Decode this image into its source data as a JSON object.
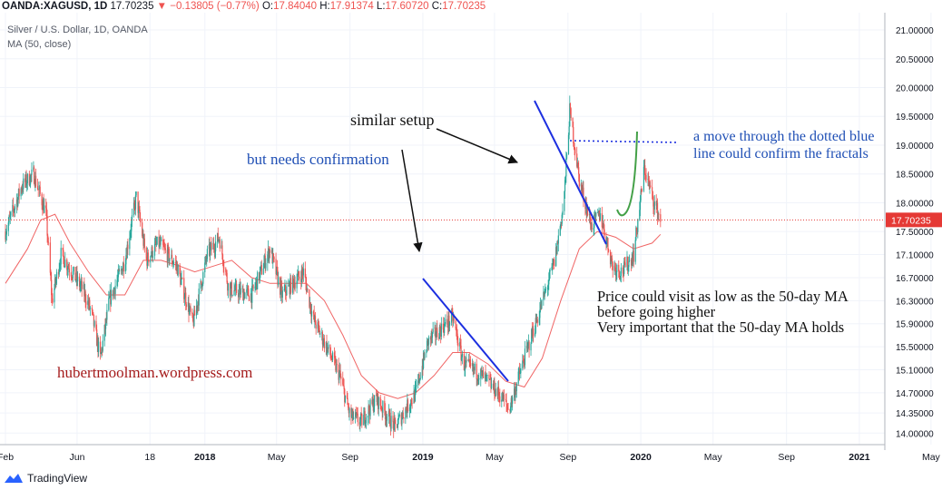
{
  "header": {
    "symbol": "OANDA:XAGUSD, 1D",
    "last": "17.70235",
    "change": "−0.13805 (−0.77%)",
    "open_label": "O:",
    "open": "17.84040",
    "high_label": "H:",
    "high": "17.91374",
    "low_label": "L:",
    "low": "17.60720",
    "close_label": "C:",
    "close": "17.70235",
    "title": "Silver / U.S. Dollar, 1D, OANDA",
    "indicator": "MA (50, close)"
  },
  "footer": {
    "brand": "TradingView"
  },
  "colors": {
    "up": "#26a69a",
    "down": "#ef5350",
    "ma": "#f06565",
    "price_line": "#e53935",
    "trend": "#1c2fe0",
    "green": "#43a047",
    "annot_blue": "#1f4fb5",
    "annot_red": "#a51b1b"
  },
  "chart_data": {
    "type": "candlestick",
    "title": "Silver / U.S. Dollar, 1D, OANDA",
    "ylim": [
      13.8,
      21.3
    ],
    "y_ticks": [
      "21.00000",
      "20.50000",
      "20.00000",
      "19.50000",
      "19.00000",
      "18.50000",
      "18.00000",
      "17.50000",
      "17.10000",
      "16.70000",
      "16.30000",
      "15.90000",
      "15.50000",
      "15.10000",
      "14.70000",
      "14.35000",
      "14.00000"
    ],
    "x_ticks": [
      "Feb",
      "Jun",
      "18",
      "2018",
      "May",
      "Sep",
      "2019",
      "May",
      "Sep",
      "2020",
      "May",
      "Sep",
      "2021",
      "May"
    ],
    "current_price": 17.70235,
    "current_price_label": "17.70235",
    "price_path": [
      [
        "2017-02-01",
        17.5
      ],
      [
        "2017-03-01",
        18.3
      ],
      [
        "2017-03-20",
        18.5
      ],
      [
        "2017-04-10",
        17.8
      ],
      [
        "2017-04-20",
        16.3
      ],
      [
        "2017-05-05",
        17.1
      ],
      [
        "2017-06-10",
        16.5
      ],
      [
        "2017-06-25",
        16.1
      ],
      [
        "2017-07-10",
        15.3
      ],
      [
        "2017-07-25",
        16.3
      ],
      [
        "2017-08-20",
        17.0
      ],
      [
        "2017-09-08",
        18.1
      ],
      [
        "2017-09-25",
        17.0
      ],
      [
        "2017-10-15",
        17.3
      ],
      [
        "2017-11-15",
        16.9
      ],
      [
        "2017-12-12",
        15.9
      ],
      [
        "2018-01-05",
        17.1
      ],
      [
        "2018-01-25",
        17.4
      ],
      [
        "2018-02-10",
        16.5
      ],
      [
        "2018-03-20",
        16.4
      ],
      [
        "2018-04-20",
        17.2
      ],
      [
        "2018-05-10",
        16.4
      ],
      [
        "2018-06-15",
        16.8
      ],
      [
        "2018-07-01",
        16.0
      ],
      [
        "2018-08-15",
        15.0
      ],
      [
        "2018-09-01",
        14.3
      ],
      [
        "2018-09-20",
        14.2
      ],
      [
        "2018-10-15",
        14.6
      ],
      [
        "2018-11-15",
        14.1
      ],
      [
        "2018-12-20",
        14.7
      ],
      [
        "2019-01-10",
        15.6
      ],
      [
        "2019-02-20",
        16.0
      ],
      [
        "2019-03-10",
        15.2
      ],
      [
        "2019-04-10",
        15.0
      ],
      [
        "2019-05-15",
        14.6
      ],
      [
        "2019-05-25",
        14.4
      ],
      [
        "2019-06-20",
        15.3
      ],
      [
        "2019-07-15",
        16.1
      ],
      [
        "2019-08-10",
        17.0
      ],
      [
        "2019-08-25",
        18.0
      ],
      [
        "2019-09-04",
        19.6
      ],
      [
        "2019-09-20",
        18.4
      ],
      [
        "2019-10-10",
        17.6
      ],
      [
        "2019-10-25",
        17.8
      ],
      [
        "2019-11-15",
        16.9
      ],
      [
        "2019-12-01",
        16.8
      ],
      [
        "2019-12-20",
        17.1
      ],
      [
        "2020-01-07",
        18.6
      ],
      [
        "2020-01-20",
        18.1
      ],
      [
        "2020-02-03",
        17.70235
      ]
    ],
    "ma50_path": [
      [
        "2017-02-01",
        16.6
      ],
      [
        "2017-03-10",
        17.2
      ],
      [
        "2017-04-01",
        17.7
      ],
      [
        "2017-04-25",
        17.8
      ],
      [
        "2017-05-20",
        17.3
      ],
      [
        "2017-06-20",
        16.8
      ],
      [
        "2017-07-20",
        16.4
      ],
      [
        "2017-08-20",
        16.4
      ],
      [
        "2017-09-20",
        17.0
      ],
      [
        "2017-10-20",
        17.0
      ],
      [
        "2017-11-20",
        16.9
      ],
      [
        "2017-12-15",
        16.8
      ],
      [
        "2018-01-15",
        16.9
      ],
      [
        "2018-02-15",
        17.0
      ],
      [
        "2018-03-20",
        16.7
      ],
      [
        "2018-04-20",
        16.6
      ],
      [
        "2018-05-20",
        16.6
      ],
      [
        "2018-06-20",
        16.6
      ],
      [
        "2018-07-20",
        16.3
      ],
      [
        "2018-08-20",
        15.7
      ],
      [
        "2018-09-20",
        15.0
      ],
      [
        "2018-10-20",
        14.7
      ],
      [
        "2018-11-20",
        14.6
      ],
      [
        "2018-12-20",
        14.7
      ],
      [
        "2019-01-20",
        15.0
      ],
      [
        "2019-02-20",
        15.4
      ],
      [
        "2019-03-20",
        15.4
      ],
      [
        "2019-04-20",
        15.2
      ],
      [
        "2019-05-20",
        14.9
      ],
      [
        "2019-06-20",
        14.8
      ],
      [
        "2019-07-20",
        15.3
      ],
      [
        "2019-08-20",
        16.3
      ],
      [
        "2019-09-20",
        17.2
      ],
      [
        "2019-10-20",
        17.5
      ],
      [
        "2019-11-20",
        17.4
      ],
      [
        "2019-12-20",
        17.2
      ],
      [
        "2020-01-20",
        17.3
      ],
      [
        "2020-02-03",
        17.45
      ]
    ],
    "annotations": {
      "similar_setup": "similar setup",
      "needs_confirmation": "but needs confirmation",
      "move_through": "a move through the dotted blue\nline could confirm the fractals",
      "price_could_visit": "Price could visit as low as the 50-day MA\nbefore going higher\nVery important that the 50-day MA holds",
      "website": "hubertmoolman.wordpress.com"
    }
  }
}
